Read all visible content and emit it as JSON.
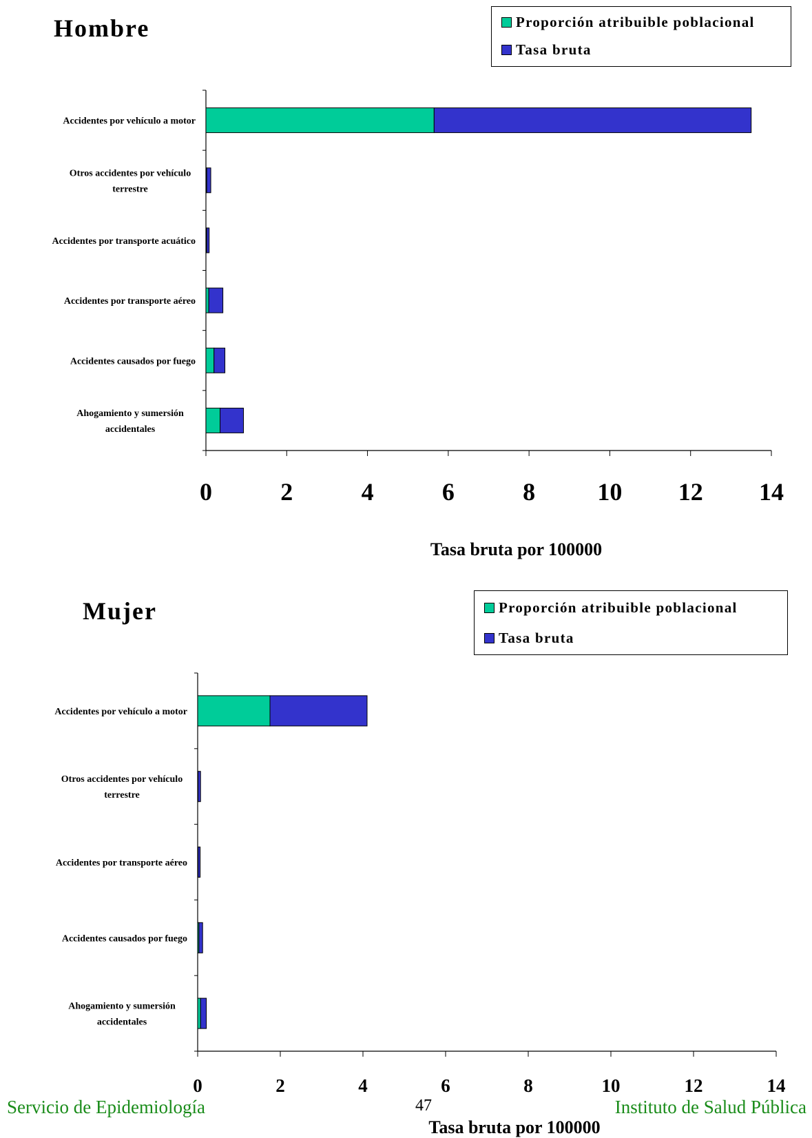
{
  "colors": {
    "apportioned": "#00cc99",
    "crude": "#3333cc"
  },
  "footer": {
    "left": "Servicio de Epidemiología",
    "page": "47",
    "right": "Instituto de Salud Pública"
  },
  "panels": [
    {
      "title": "Hombre",
      "legend": [
        "Proporción atribuible poblacional",
        "Tasa bruta"
      ]
    },
    {
      "title": "Mujer",
      "legend": [
        "Proporción atribuible poblacional",
        "Tasa bruta"
      ]
    }
  ],
  "chart_data": [
    {
      "type": "bar",
      "orientation": "horizontal",
      "stacked": true,
      "title": "Hombre",
      "xlabel": "Tasa bruta por 100000",
      "ylabel": "",
      "xlim": [
        0,
        14
      ],
      "xticks": [
        0,
        2,
        4,
        6,
        8,
        10,
        12,
        14
      ],
      "legend_position": "top-right",
      "categories": [
        [
          "Accidentes por vehículo a motor"
        ],
        [
          "Otros accidentes por vehículo",
          "terrestre"
        ],
        [
          "Accidentes por transporte acuático"
        ],
        [
          "Accidentes por transporte aéreo"
        ],
        [
          "Accidentes causados por fuego"
        ],
        [
          "Ahogamiento y sumersión",
          "accidentales"
        ]
      ],
      "series": [
        {
          "name": "Proporción atribuible poblacional",
          "color": "#00cc99",
          "values": [
            5.65,
            0.02,
            0.02,
            0.07,
            0.2,
            0.35
          ]
        },
        {
          "name": "Tasa bruta",
          "color": "#3333cc",
          "values": [
            7.85,
            0.1,
            0.06,
            0.35,
            0.27,
            0.58
          ]
        }
      ]
    },
    {
      "type": "bar",
      "orientation": "horizontal",
      "stacked": true,
      "title": "Mujer",
      "xlabel": "Tasa bruta por 100000",
      "ylabel": "",
      "xlim": [
        0,
        14
      ],
      "xticks": [
        0,
        2,
        4,
        6,
        8,
        10,
        12,
        14
      ],
      "legend_position": "top-right",
      "categories": [
        [
          "Accidentes por vehículo a motor"
        ],
        [
          "Otros accidentes por vehículo",
          "terrestre"
        ],
        [
          "Accidentes por transporte aéreo"
        ],
        [
          "Accidentes causados por fuego"
        ],
        [
          "Ahogamiento y sumersión",
          "accidentales"
        ]
      ],
      "series": [
        {
          "name": "Proporción atribuible poblacional",
          "color": "#00cc99",
          "values": [
            1.75,
            0.01,
            0.01,
            0.03,
            0.07
          ]
        },
        {
          "name": "Tasa bruta",
          "color": "#3333cc",
          "values": [
            2.35,
            0.06,
            0.05,
            0.09,
            0.14
          ]
        }
      ]
    }
  ]
}
